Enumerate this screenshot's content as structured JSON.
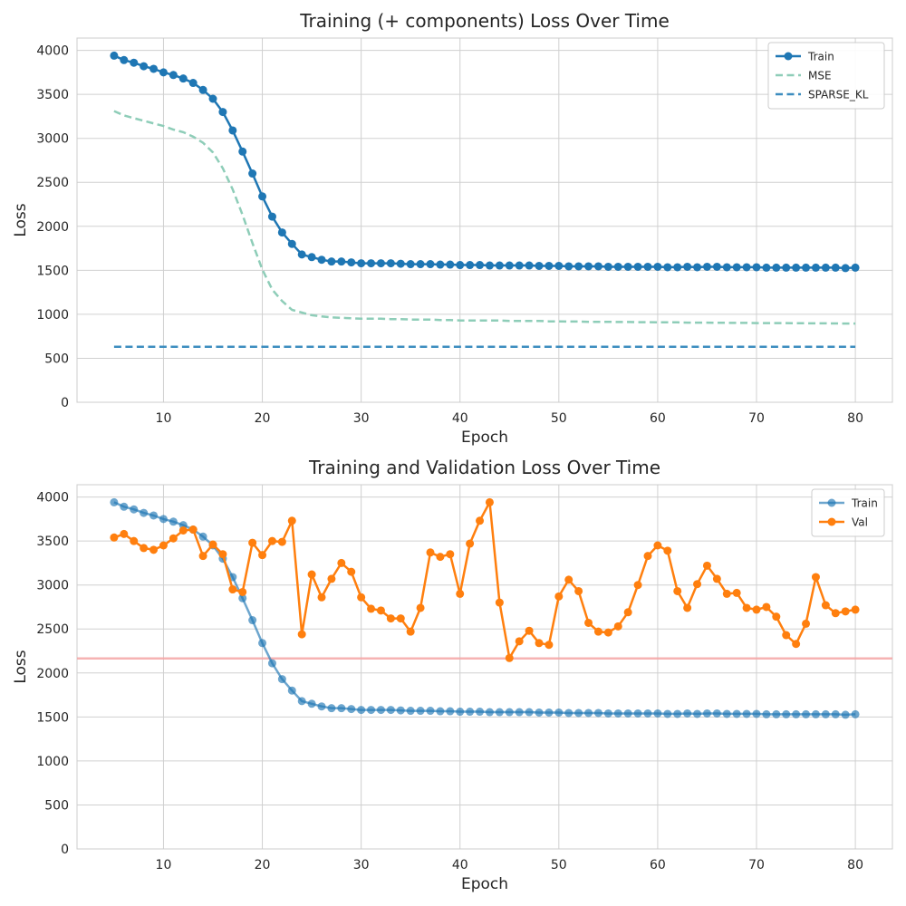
{
  "colors": {
    "train": "#1f77b4",
    "mse": "#8ecdb8",
    "sparse_kl": "#3c8dbf",
    "val": "#ff7f0e",
    "ref_line": "#f4a6a6",
    "grid": "#d0d0d0",
    "axes_edge": "#cccccc"
  },
  "chart_data": [
    {
      "type": "line",
      "title": "Training (+ components) Loss Over Time",
      "xlabel": "Epoch",
      "ylabel": "Loss",
      "xlim": [
        1.25,
        83.75
      ],
      "ylim": [
        0,
        4140
      ],
      "xticks": [
        10,
        20,
        30,
        40,
        50,
        60,
        70,
        80
      ],
      "yticks": [
        0,
        500,
        1000,
        1500,
        2000,
        2500,
        3000,
        3500,
        4000
      ],
      "grid": true,
      "legend_position": "top-right",
      "x": [
        5,
        6,
        7,
        8,
        9,
        10,
        11,
        12,
        13,
        14,
        15,
        16,
        17,
        18,
        19,
        20,
        21,
        22,
        23,
        24,
        25,
        26,
        27,
        28,
        29,
        30,
        31,
        32,
        33,
        34,
        35,
        36,
        37,
        38,
        39,
        40,
        41,
        42,
        43,
        44,
        45,
        46,
        47,
        48,
        49,
        50,
        51,
        52,
        53,
        54,
        55,
        56,
        57,
        58,
        59,
        60,
        61,
        62,
        63,
        64,
        65,
        66,
        67,
        68,
        69,
        70,
        71,
        72,
        73,
        74,
        75,
        76,
        77,
        78,
        79,
        80
      ],
      "series": [
        {
          "name": "Train",
          "style": "solid-markers",
          "color_key": "train",
          "values": [
            3940,
            3890,
            3860,
            3820,
            3790,
            3750,
            3720,
            3680,
            3630,
            3550,
            3450,
            3300,
            3090,
            2850,
            2600,
            2340,
            2110,
            1930,
            1800,
            1680,
            1650,
            1620,
            1600,
            1600,
            1590,
            1580,
            1580,
            1580,
            1580,
            1575,
            1570,
            1570,
            1570,
            1565,
            1565,
            1560,
            1560,
            1560,
            1555,
            1555,
            1555,
            1555,
            1555,
            1550,
            1550,
            1550,
            1545,
            1545,
            1545,
            1545,
            1540,
            1540,
            1540,
            1540,
            1540,
            1540,
            1535,
            1535,
            1540,
            1535,
            1540,
            1540,
            1535,
            1535,
            1535,
            1535,
            1530,
            1530,
            1530,
            1530,
            1530,
            1530,
            1530,
            1530,
            1525,
            1530
          ]
        },
        {
          "name": "MSE",
          "style": "dashed",
          "color_key": "mse",
          "values": [
            3310,
            3260,
            3230,
            3200,
            3170,
            3140,
            3100,
            3070,
            3020,
            2950,
            2840,
            2660,
            2420,
            2130,
            1810,
            1510,
            1280,
            1150,
            1050,
            1020,
            990,
            975,
            965,
            960,
            955,
            950,
            950,
            950,
            945,
            945,
            940,
            940,
            940,
            935,
            935,
            930,
            930,
            930,
            930,
            930,
            925,
            925,
            925,
            925,
            920,
            920,
            918,
            918,
            915,
            915,
            915,
            912,
            912,
            910,
            910,
            908,
            908,
            908,
            905,
            905,
            905,
            903,
            903,
            902,
            902,
            900,
            900,
            900,
            900,
            898,
            898,
            897,
            897,
            896,
            895,
            895
          ]
        },
        {
          "name": "SPARSE_KL",
          "style": "dashed",
          "color_key": "sparse_kl",
          "values": [
            630,
            630,
            630,
            630,
            630,
            630,
            630,
            630,
            630,
            630,
            630,
            630,
            630,
            630,
            630,
            630,
            630,
            630,
            630,
            630,
            630,
            630,
            630,
            630,
            630,
            630,
            630,
            630,
            630,
            630,
            630,
            630,
            630,
            630,
            630,
            630,
            630,
            630,
            630,
            630,
            630,
            630,
            630,
            630,
            630,
            630,
            630,
            630,
            630,
            630,
            630,
            630,
            630,
            630,
            630,
            630,
            630,
            630,
            630,
            630,
            630,
            630,
            630,
            630,
            630,
            630,
            630,
            630,
            630,
            630,
            630,
            630,
            630,
            630,
            630,
            630
          ]
        }
      ]
    },
    {
      "type": "line",
      "title": "Training and Validation Loss Over Time",
      "xlabel": "Epoch",
      "ylabel": "Loss",
      "xlim": [
        1.25,
        83.75
      ],
      "ylim": [
        0,
        4140
      ],
      "xticks": [
        10,
        20,
        30,
        40,
        50,
        60,
        70,
        80
      ],
      "yticks": [
        0,
        500,
        1000,
        1500,
        2000,
        2500,
        3000,
        3500,
        4000
      ],
      "grid": true,
      "legend_position": "top-right",
      "hline": 2165,
      "x": [
        5,
        6,
        7,
        8,
        9,
        10,
        11,
        12,
        13,
        14,
        15,
        16,
        17,
        18,
        19,
        20,
        21,
        22,
        23,
        24,
        25,
        26,
        27,
        28,
        29,
        30,
        31,
        32,
        33,
        34,
        35,
        36,
        37,
        38,
        39,
        40,
        41,
        42,
        43,
        44,
        45,
        46,
        47,
        48,
        49,
        50,
        51,
        52,
        53,
        54,
        55,
        56,
        57,
        58,
        59,
        60,
        61,
        62,
        63,
        64,
        65,
        66,
        67,
        68,
        69,
        70,
        71,
        72,
        73,
        74,
        75,
        76,
        77,
        78,
        79,
        80
      ],
      "series": [
        {
          "name": "Train",
          "style": "solid-markers-faded",
          "color_key": "train",
          "values": [
            3940,
            3890,
            3860,
            3820,
            3790,
            3750,
            3720,
            3680,
            3630,
            3550,
            3450,
            3300,
            3090,
            2850,
            2600,
            2340,
            2110,
            1930,
            1800,
            1680,
            1650,
            1620,
            1600,
            1600,
            1590,
            1580,
            1580,
            1580,
            1580,
            1575,
            1570,
            1570,
            1570,
            1565,
            1565,
            1560,
            1560,
            1560,
            1555,
            1555,
            1555,
            1555,
            1555,
            1550,
            1550,
            1550,
            1545,
            1545,
            1545,
            1545,
            1540,
            1540,
            1540,
            1540,
            1540,
            1540,
            1535,
            1535,
            1540,
            1535,
            1540,
            1540,
            1535,
            1535,
            1535,
            1535,
            1530,
            1530,
            1530,
            1530,
            1530,
            1530,
            1530,
            1530,
            1525,
            1530
          ]
        },
        {
          "name": "Val",
          "style": "solid-markers",
          "color_key": "val",
          "values": [
            3540,
            3580,
            3500,
            3420,
            3400,
            3450,
            3530,
            3620,
            3630,
            3330,
            3460,
            3350,
            2950,
            2920,
            3480,
            3340,
            3500,
            3490,
            3730,
            2440,
            3120,
            2860,
            3070,
            3250,
            3150,
            2860,
            2730,
            2710,
            2620,
            2620,
            2470,
            2740,
            3370,
            3320,
            3350,
            2900,
            3470,
            3730,
            3940,
            2800,
            2170,
            2360,
            2480,
            2340,
            2320,
            2870,
            3060,
            2930,
            2570,
            2470,
            2460,
            2530,
            2690,
            3000,
            3330,
            3450,
            3390,
            2930,
            2740,
            3010,
            3220,
            3070,
            2900,
            2910,
            2740,
            2720,
            2750,
            2640,
            2430,
            2330,
            2560,
            3090,
            2770,
            2680,
            2700,
            2720
          ]
        }
      ]
    }
  ]
}
